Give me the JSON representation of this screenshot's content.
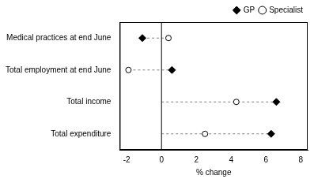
{
  "chart_data": {
    "type": "scatter",
    "orientation": "horizontal",
    "categories": [
      "Medical practices at end June",
      "Total employment at end June",
      "Total income",
      "Total expenditure"
    ],
    "series": [
      {
        "name": "GP",
        "color": "#000000",
        "marker": "diamond",
        "values": [
          -1.1,
          0.6,
          6.6,
          6.3
        ]
      },
      {
        "name": "Specialist",
        "color": "#000000",
        "marker": "open circle",
        "values": [
          0.4,
          -1.9,
          4.3,
          2.5
        ]
      }
    ],
    "x_label": "% change",
    "xlim": [
      -2.4,
      8.4
    ],
    "xticks": [
      -2,
      0,
      2,
      4,
      6,
      8
    ],
    "grid": false,
    "legend": "top-right",
    "line_style": "dashed"
  }
}
